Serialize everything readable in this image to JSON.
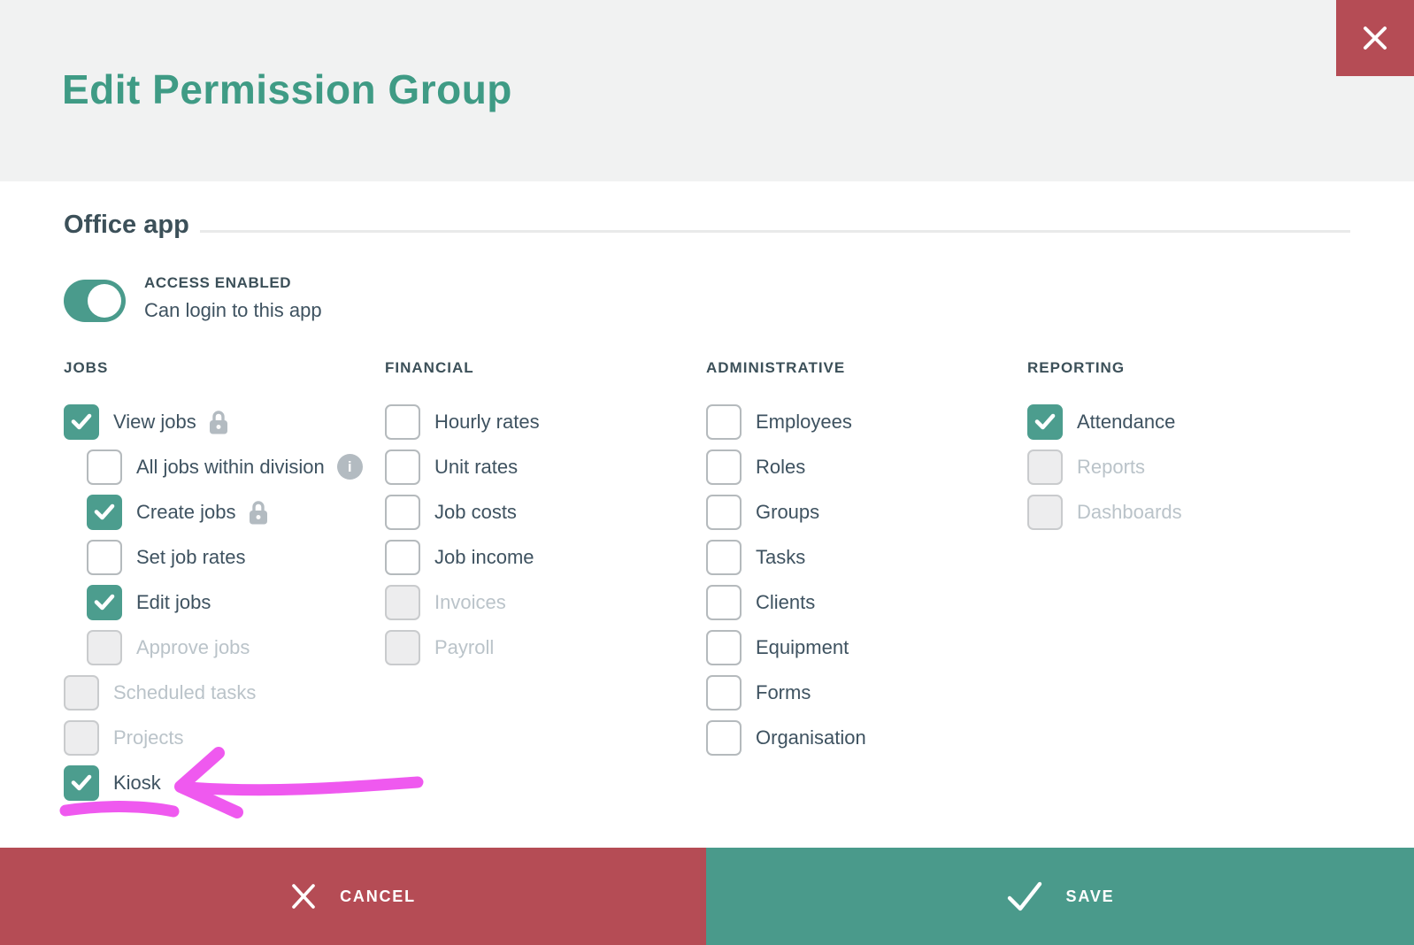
{
  "modal": {
    "title": "Edit Permission Group"
  },
  "section": {
    "heading": "Office app",
    "toggle": {
      "label": "ACCESS ENABLED",
      "description": "Can login to this app",
      "enabled": true
    }
  },
  "columns": [
    {
      "header": "JOBS",
      "items": [
        {
          "label": "View jobs",
          "checked": true,
          "disabled": false,
          "indent": 0,
          "icon": "lock"
        },
        {
          "label": "All jobs within division",
          "checked": false,
          "disabled": false,
          "indent": 1,
          "icon": "info"
        },
        {
          "label": "Create jobs",
          "checked": true,
          "disabled": false,
          "indent": 1,
          "icon": "lock"
        },
        {
          "label": "Set job rates",
          "checked": false,
          "disabled": false,
          "indent": 1,
          "icon": null
        },
        {
          "label": "Edit jobs",
          "checked": true,
          "disabled": false,
          "indent": 1,
          "icon": null
        },
        {
          "label": "Approve jobs",
          "checked": false,
          "disabled": true,
          "indent": 1,
          "icon": null
        },
        {
          "label": "Scheduled tasks",
          "checked": false,
          "disabled": true,
          "indent": 0,
          "icon": null
        },
        {
          "label": "Projects",
          "checked": false,
          "disabled": true,
          "indent": 0,
          "icon": null
        },
        {
          "label": "Kiosk",
          "checked": true,
          "disabled": false,
          "indent": 0,
          "icon": null
        }
      ]
    },
    {
      "header": "FINANCIAL",
      "items": [
        {
          "label": "Hourly rates",
          "checked": false,
          "disabled": false,
          "indent": 0,
          "icon": null
        },
        {
          "label": "Unit rates",
          "checked": false,
          "disabled": false,
          "indent": 0,
          "icon": null
        },
        {
          "label": "Job costs",
          "checked": false,
          "disabled": false,
          "indent": 0,
          "icon": null
        },
        {
          "label": "Job income",
          "checked": false,
          "disabled": false,
          "indent": 0,
          "icon": null
        },
        {
          "label": "Invoices",
          "checked": false,
          "disabled": true,
          "indent": 0,
          "icon": null
        },
        {
          "label": "Payroll",
          "checked": false,
          "disabled": true,
          "indent": 0,
          "icon": null
        }
      ]
    },
    {
      "header": "ADMINISTRATIVE",
      "items": [
        {
          "label": "Employees",
          "checked": false,
          "disabled": false,
          "indent": 0,
          "icon": null
        },
        {
          "label": "Roles",
          "checked": false,
          "disabled": false,
          "indent": 0,
          "icon": null
        },
        {
          "label": "Groups",
          "checked": false,
          "disabled": false,
          "indent": 0,
          "icon": null
        },
        {
          "label": "Tasks",
          "checked": false,
          "disabled": false,
          "indent": 0,
          "icon": null
        },
        {
          "label": "Clients",
          "checked": false,
          "disabled": false,
          "indent": 0,
          "icon": null
        },
        {
          "label": "Equipment",
          "checked": false,
          "disabled": false,
          "indent": 0,
          "icon": null
        },
        {
          "label": "Forms",
          "checked": false,
          "disabled": false,
          "indent": 0,
          "icon": null
        },
        {
          "label": "Organisation",
          "checked": false,
          "disabled": false,
          "indent": 0,
          "icon": null
        }
      ]
    },
    {
      "header": "REPORTING",
      "items": [
        {
          "label": "Attendance",
          "checked": true,
          "disabled": false,
          "indent": 0,
          "icon": null
        },
        {
          "label": "Reports",
          "checked": false,
          "disabled": true,
          "indent": 0,
          "icon": null
        },
        {
          "label": "Dashboards",
          "checked": false,
          "disabled": true,
          "indent": 0,
          "icon": null
        }
      ]
    }
  ],
  "footer": {
    "cancel_label": "CANCEL",
    "save_label": "SAVE"
  },
  "annotation": {
    "type": "hand-drawn-arrow-pointing-left-with-underline",
    "target": "Kiosk",
    "color": "#EF59EF"
  },
  "colors": {
    "header_bg": "#F1F2F2",
    "title_teal": "#3F9B85",
    "brand_teal": "#4A9B8C",
    "checkbox_teal": "#4C9D8E",
    "danger_red": "#B54C55",
    "footer_teal": "#4A9A8B",
    "text_dark": "#3C5059",
    "disabled_text": "#BAC3C9",
    "icon_gray": "#B3BBC1",
    "annotation_pink": "#EF59EF"
  }
}
